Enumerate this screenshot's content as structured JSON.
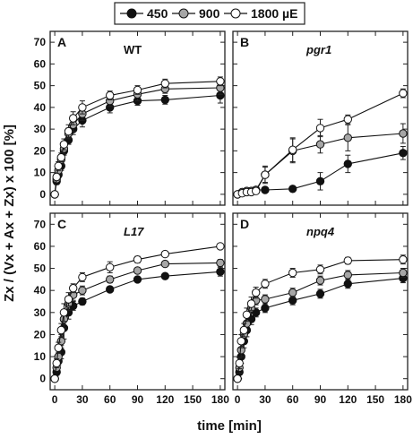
{
  "legend": {
    "items": [
      {
        "label": "450",
        "fill": "#111111"
      },
      {
        "label": "900",
        "fill": "#a6a6a6"
      },
      {
        "label": "1800 µE",
        "fill": "#ffffff"
      }
    ]
  },
  "y_axis_title": "Zx / (Vx + Ax + Zx) x 100 [%]",
  "x_axis_title": "time [min]",
  "chart_data": [
    {
      "type": "line",
      "letter": "A",
      "title": "WT",
      "title_italic": false,
      "xlim": [
        -5,
        185
      ],
      "ylim": [
        -5,
        75
      ],
      "x_ticks": [
        0,
        30,
        60,
        90,
        120,
        150,
        180
      ],
      "y_ticks": [
        0,
        10,
        20,
        30,
        40,
        50,
        60,
        70
      ],
      "x": [
        0,
        2,
        4,
        7,
        10,
        15,
        20,
        30,
        60,
        90,
        120,
        180
      ],
      "series": [
        {
          "name": "450",
          "values": [
            0,
            6,
            9,
            13,
            20,
            25,
            30,
            34,
            40,
            43,
            43.5,
            45.5
          ],
          "errors": [
            0,
            1.5,
            1.5,
            2,
            2,
            2,
            2.5,
            3,
            2.5,
            2,
            2,
            3.5
          ]
        },
        {
          "name": "900",
          "values": [
            0,
            7,
            11,
            16,
            21,
            28,
            32,
            37,
            43,
            46,
            48.5,
            49
          ],
          "errors": [
            0,
            1.5,
            1.5,
            2,
            2.5,
            2.5,
            3,
            3,
            2.5,
            3,
            2,
            3
          ]
        },
        {
          "name": "1800 µE",
          "values": [
            0,
            8,
            13,
            17,
            23,
            29,
            35,
            40,
            45.5,
            48,
            51,
            52
          ],
          "errors": [
            0,
            1.5,
            2,
            2,
            2.5,
            3,
            3,
            3,
            2,
            2,
            2,
            2
          ]
        }
      ]
    },
    {
      "type": "line",
      "letter": "B",
      "title": "pgr1",
      "title_italic": true,
      "xlim": [
        -5,
        185
      ],
      "ylim": [
        -5,
        75
      ],
      "x_ticks": [
        0,
        30,
        60,
        90,
        120,
        150,
        180
      ],
      "y_ticks": [
        0,
        10,
        20,
        30,
        40,
        50,
        60,
        70
      ],
      "x": [
        0,
        5,
        10,
        15,
        20,
        30,
        60,
        90,
        120,
        180
      ],
      "series": [
        {
          "name": "450",
          "values": [
            0,
            1,
            1.5,
            1.5,
            2,
            2,
            2.5,
            6,
            14,
            19
          ],
          "errors": [
            0,
            0.5,
            0.5,
            0.5,
            0.5,
            1,
            1,
            4,
            4,
            3
          ]
        },
        {
          "name": "900",
          "values": [
            0,
            1,
            1.5,
            1.5,
            2,
            9,
            20,
            23,
            26,
            28
          ],
          "errors": [
            0,
            0.5,
            0.5,
            1,
            1,
            4,
            5.5,
            4,
            6,
            4.5
          ]
        },
        {
          "name": "1800 µE",
          "values": [
            0,
            0.5,
            1,
            1,
            1.5,
            9,
            20.5,
            30.5,
            34.5,
            46.5
          ],
          "errors": [
            0,
            0.5,
            0.5,
            0.5,
            1,
            3.5,
            5.5,
            4,
            2,
            2
          ]
        }
      ]
    },
    {
      "type": "line",
      "letter": "C",
      "title": "L17",
      "title_italic": true,
      "xlim": [
        -5,
        185
      ],
      "ylim": [
        -5,
        75
      ],
      "x_ticks": [
        0,
        30,
        60,
        90,
        120,
        150,
        180
      ],
      "y_ticks": [
        0,
        10,
        20,
        30,
        40,
        50,
        60,
        70
      ],
      "x": [
        0,
        2,
        4,
        7,
        10,
        15,
        20,
        30,
        60,
        90,
        120,
        180
      ],
      "series": [
        {
          "name": "450",
          "values": [
            0,
            3,
            8,
            12,
            23,
            30,
            33,
            35,
            40.5,
            45,
            46.5,
            48.5
          ],
          "errors": [
            0,
            1.5,
            2,
            3,
            5,
            3,
            2,
            1.5,
            1,
            1,
            1,
            2
          ]
        },
        {
          "name": "900",
          "values": [
            0,
            5,
            10,
            17,
            27,
            34,
            38,
            40,
            45,
            49,
            52,
            52.5
          ],
          "errors": [
            0,
            1.5,
            2,
            3,
            4,
            3,
            2.5,
            2,
            1.5,
            1,
            1,
            1.5
          ]
        },
        {
          "name": "1800 µE",
          "values": [
            0,
            7,
            14,
            22,
            30,
            36,
            41,
            46,
            50.5,
            54,
            56.5,
            60
          ],
          "errors": [
            0,
            2,
            2.5,
            3,
            4,
            3,
            2,
            2,
            2.5,
            1.5,
            1,
            1
          ]
        }
      ]
    },
    {
      "type": "line",
      "letter": "D",
      "title": "npq4",
      "title_italic": true,
      "xlim": [
        -5,
        185
      ],
      "ylim": [
        -5,
        75
      ],
      "x_ticks": [
        0,
        30,
        60,
        90,
        120,
        150,
        180
      ],
      "y_ticks": [
        0,
        10,
        20,
        30,
        40,
        50,
        60,
        70
      ],
      "x": [
        0,
        2,
        4,
        7,
        10,
        15,
        20,
        30,
        60,
        90,
        120,
        180
      ],
      "series": [
        {
          "name": "450",
          "values": [
            0,
            3,
            10,
            17,
            22,
            27,
            30,
            32,
            35.5,
            38.5,
            43,
            45.5
          ],
          "errors": [
            0,
            3,
            3,
            3,
            3,
            2.5,
            2,
            2,
            2,
            2,
            2,
            2
          ]
        },
        {
          "name": "900",
          "values": [
            0,
            5,
            13,
            20,
            25,
            32,
            35.5,
            36,
            39,
            44.5,
            47,
            48
          ],
          "errors": [
            0,
            2.5,
            3,
            3,
            3,
            2.5,
            2,
            2,
            2,
            2,
            2,
            2
          ]
        },
        {
          "name": "1800 µE",
          "values": [
            0,
            7,
            17,
            22,
            29,
            34,
            39,
            43,
            48,
            49.5,
            53.5,
            54
          ],
          "errors": [
            0,
            2.5,
            3,
            3,
            3,
            3,
            2.5,
            2,
            2,
            2,
            1.5,
            2
          ]
        }
      ]
    }
  ]
}
